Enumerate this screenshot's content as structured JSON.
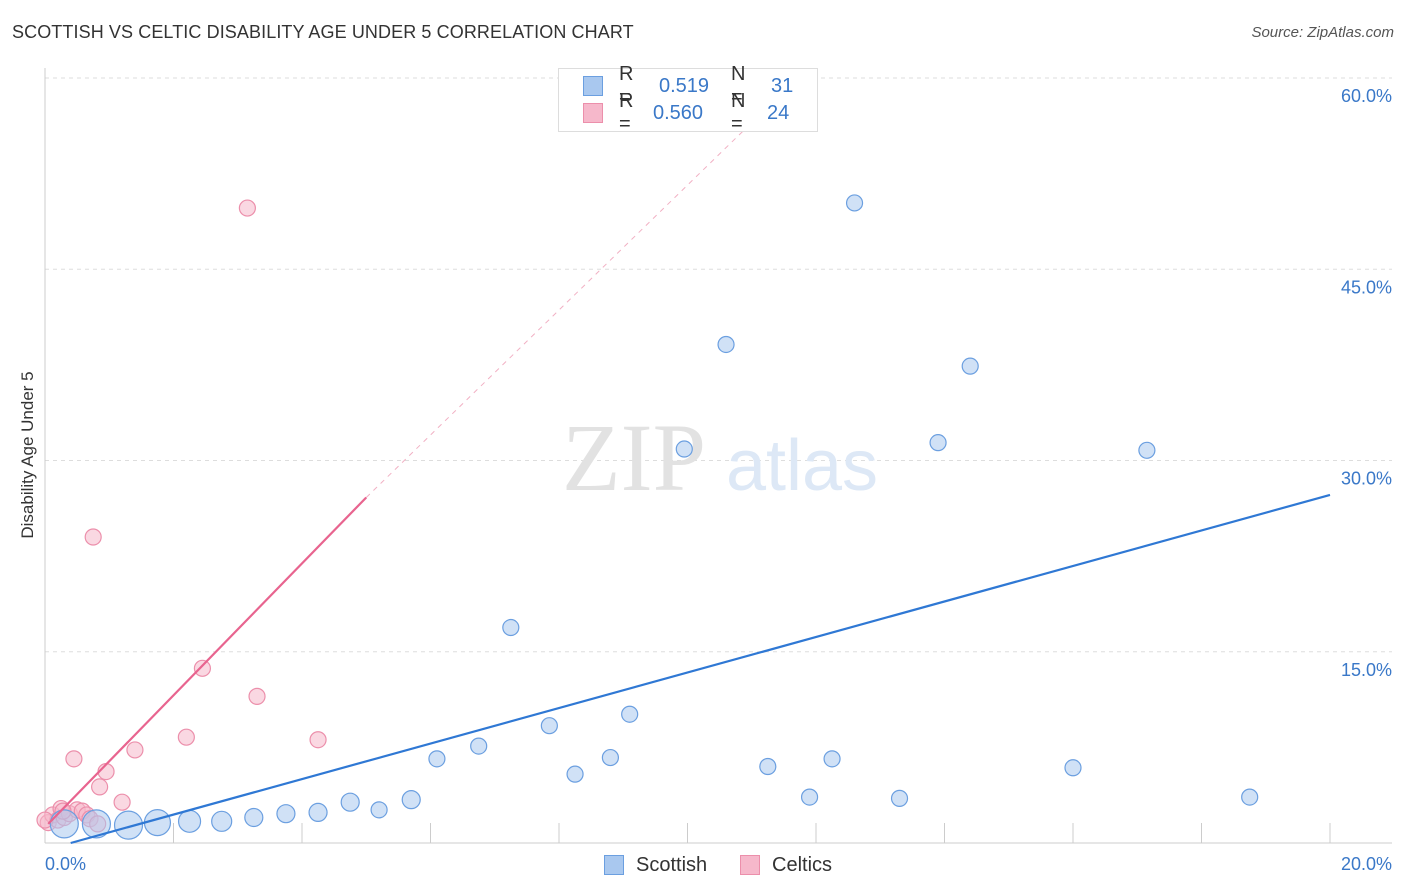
{
  "title": "SCOTTISH VS CELTIC DISABILITY AGE UNDER 5 CORRELATION CHART",
  "source": "Source: ZipAtlas.com",
  "watermark": {
    "zip": "ZIP",
    "atlas": "atlas"
  },
  "legend": {
    "rows": [
      {
        "r_label": "R =",
        "r_value": "0.519",
        "n_label": "N =",
        "n_value": "31"
      },
      {
        "r_label": "R =",
        "r_value": "0.560",
        "n_label": "N =",
        "n_value": "24"
      }
    ]
  },
  "bottom_legend": {
    "scottish": "Scottish",
    "celtics": "Celtics"
  },
  "chart_data": {
    "type": "scatter",
    "title": "SCOTTISH VS CELTIC DISABILITY AGE UNDER 5 CORRELATION CHART",
    "xlabel": "",
    "ylabel": "Disability Age Under 5",
    "xlim": [
      0,
      20
    ],
    "ylim": [
      0,
      60
    ],
    "x_tick_labels": [
      "0.0%",
      "20.0%"
    ],
    "y_ticks": [
      15,
      30,
      45,
      60
    ],
    "y_tick_labels": [
      "15.0%",
      "30.0%",
      "45.0%",
      "60.0%"
    ],
    "grid": true,
    "legend_position": "top-center",
    "colors": {
      "scottish_fill": "#a9c8ef",
      "scottish_stroke": "#6b9fe0",
      "scottish_line": "#2f78d4",
      "celtics_fill": "#f6b8cb",
      "celtics_stroke": "#ec8fab",
      "celtics_line": "#e8648f",
      "tick_label": "#3a78c8"
    },
    "series": [
      {
        "name": "Scottish",
        "r": 0.519,
        "n": 31,
        "points": [
          {
            "x": 0.3,
            "y": 1.5,
            "s": 14
          },
          {
            "x": 0.8,
            "y": 1.5,
            "s": 14
          },
          {
            "x": 1.3,
            "y": 1.4,
            "s": 14
          },
          {
            "x": 1.75,
            "y": 1.6,
            "s": 13
          },
          {
            "x": 2.25,
            "y": 1.7,
            "s": 11
          },
          {
            "x": 2.75,
            "y": 1.7,
            "s": 10
          },
          {
            "x": 3.25,
            "y": 2.0,
            "s": 9
          },
          {
            "x": 3.75,
            "y": 2.3,
            "s": 9
          },
          {
            "x": 4.25,
            "y": 2.4,
            "s": 9
          },
          {
            "x": 4.75,
            "y": 3.2,
            "s": 9
          },
          {
            "x": 5.2,
            "y": 2.6,
            "s": 8
          },
          {
            "x": 5.7,
            "y": 3.4,
            "s": 9
          },
          {
            "x": 6.1,
            "y": 6.6,
            "s": 8
          },
          {
            "x": 6.75,
            "y": 7.6,
            "s": 8
          },
          {
            "x": 7.25,
            "y": 16.9,
            "s": 8
          },
          {
            "x": 7.85,
            "y": 9.2,
            "s": 8
          },
          {
            "x": 8.25,
            "y": 5.4,
            "s": 8
          },
          {
            "x": 8.8,
            "y": 6.7,
            "s": 8
          },
          {
            "x": 9.1,
            "y": 10.1,
            "s": 8
          },
          {
            "x": 9.95,
            "y": 30.9,
            "s": 8
          },
          {
            "x": 10.6,
            "y": 39.1,
            "s": 8
          },
          {
            "x": 11.25,
            "y": 6.0,
            "s": 8
          },
          {
            "x": 11.9,
            "y": 3.6,
            "s": 8
          },
          {
            "x": 12.25,
            "y": 6.6,
            "s": 8
          },
          {
            "x": 12.6,
            "y": 50.2,
            "s": 8
          },
          {
            "x": 13.3,
            "y": 3.5,
            "s": 8
          },
          {
            "x": 13.9,
            "y": 31.4,
            "s": 8
          },
          {
            "x": 14.4,
            "y": 37.4,
            "s": 8
          },
          {
            "x": 16.0,
            "y": 5.9,
            "s": 8
          },
          {
            "x": 17.15,
            "y": 30.8,
            "s": 8
          },
          {
            "x": 18.75,
            "y": 3.6,
            "s": 8
          }
        ],
        "trend": {
          "x": [
            0.4,
            20.0
          ],
          "y": [
            0.0,
            27.3
          ]
        }
      },
      {
        "name": "Celtics",
        "r": 0.56,
        "n": 24,
        "points": [
          {
            "x": 0.05,
            "y": 1.6,
            "s": 8
          },
          {
            "x": 0.12,
            "y": 2.2,
            "s": 8
          },
          {
            "x": 0.2,
            "y": 1.8,
            "s": 8
          },
          {
            "x": 0.25,
            "y": 2.7,
            "s": 8
          },
          {
            "x": 0.3,
            "y": 2.0,
            "s": 8
          },
          {
            "x": 0.38,
            "y": 2.3,
            "s": 8
          },
          {
            "x": 0.45,
            "y": 6.6,
            "s": 8
          },
          {
            "x": 0.5,
            "y": 2.6,
            "s": 8
          },
          {
            "x": 0.58,
            "y": 2.5,
            "s": 8
          },
          {
            "x": 0.65,
            "y": 2.2,
            "s": 8
          },
          {
            "x": 0.7,
            "y": 1.9,
            "s": 8
          },
          {
            "x": 0.75,
            "y": 24.0,
            "s": 8
          },
          {
            "x": 0.82,
            "y": 1.5,
            "s": 8
          },
          {
            "x": 0.85,
            "y": 4.4,
            "s": 8
          },
          {
            "x": 0.95,
            "y": 5.6,
            "s": 8
          },
          {
            "x": 1.2,
            "y": 3.2,
            "s": 8
          },
          {
            "x": 1.4,
            "y": 7.3,
            "s": 8
          },
          {
            "x": 2.2,
            "y": 8.3,
            "s": 8
          },
          {
            "x": 2.45,
            "y": 13.7,
            "s": 8
          },
          {
            "x": 3.15,
            "y": 49.8,
            "s": 8
          },
          {
            "x": 3.3,
            "y": 11.5,
            "s": 8
          },
          {
            "x": 4.25,
            "y": 8.1,
            "s": 8
          },
          {
            "x": 0.0,
            "y": 1.8,
            "s": 8
          },
          {
            "x": 0.28,
            "y": 2.5,
            "s": 8
          }
        ],
        "trend": {
          "x": [
            0.05,
            5.0
          ],
          "y": [
            1.5,
            27.1
          ]
        },
        "trend_dashed": {
          "x": [
            5.0,
            11.0
          ],
          "y": [
            27.1,
            56.5
          ]
        }
      }
    ]
  }
}
